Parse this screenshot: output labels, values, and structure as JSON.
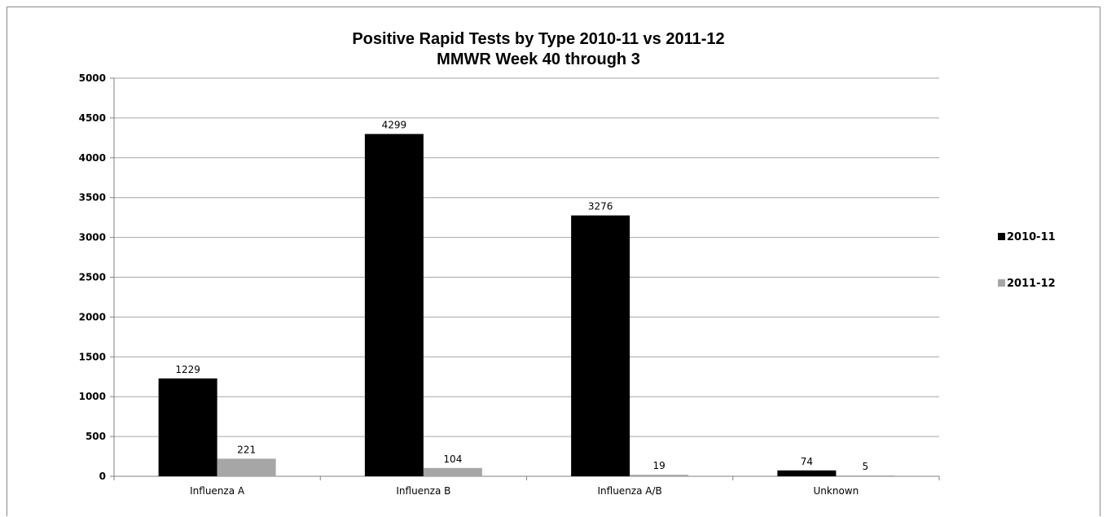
{
  "chart_data": {
    "type": "bar",
    "title": "Positive Rapid Tests by Type 2010-11 vs 2011-12",
    "subtitle": "MMWR Week 40 through 3",
    "xlabel": "",
    "ylabel": "",
    "categories": [
      "Influenza A",
      "Influenza B",
      "Influenza A/B",
      "Unknown"
    ],
    "series": [
      {
        "name": "2010-11",
        "color": "#000000",
        "values": [
          1229,
          4299,
          3276,
          74
        ]
      },
      {
        "name": "2011-12",
        "color": "#a6a6a6",
        "values": [
          221,
          104,
          19,
          5
        ]
      }
    ],
    "ylim": [
      0,
      5000
    ],
    "yticks": [
      0,
      500,
      1000,
      1500,
      2000,
      2500,
      3000,
      3500,
      4000,
      4500,
      5000
    ],
    "grid": true,
    "legend_position": "right",
    "gridline_color": "#a6a6a6"
  }
}
